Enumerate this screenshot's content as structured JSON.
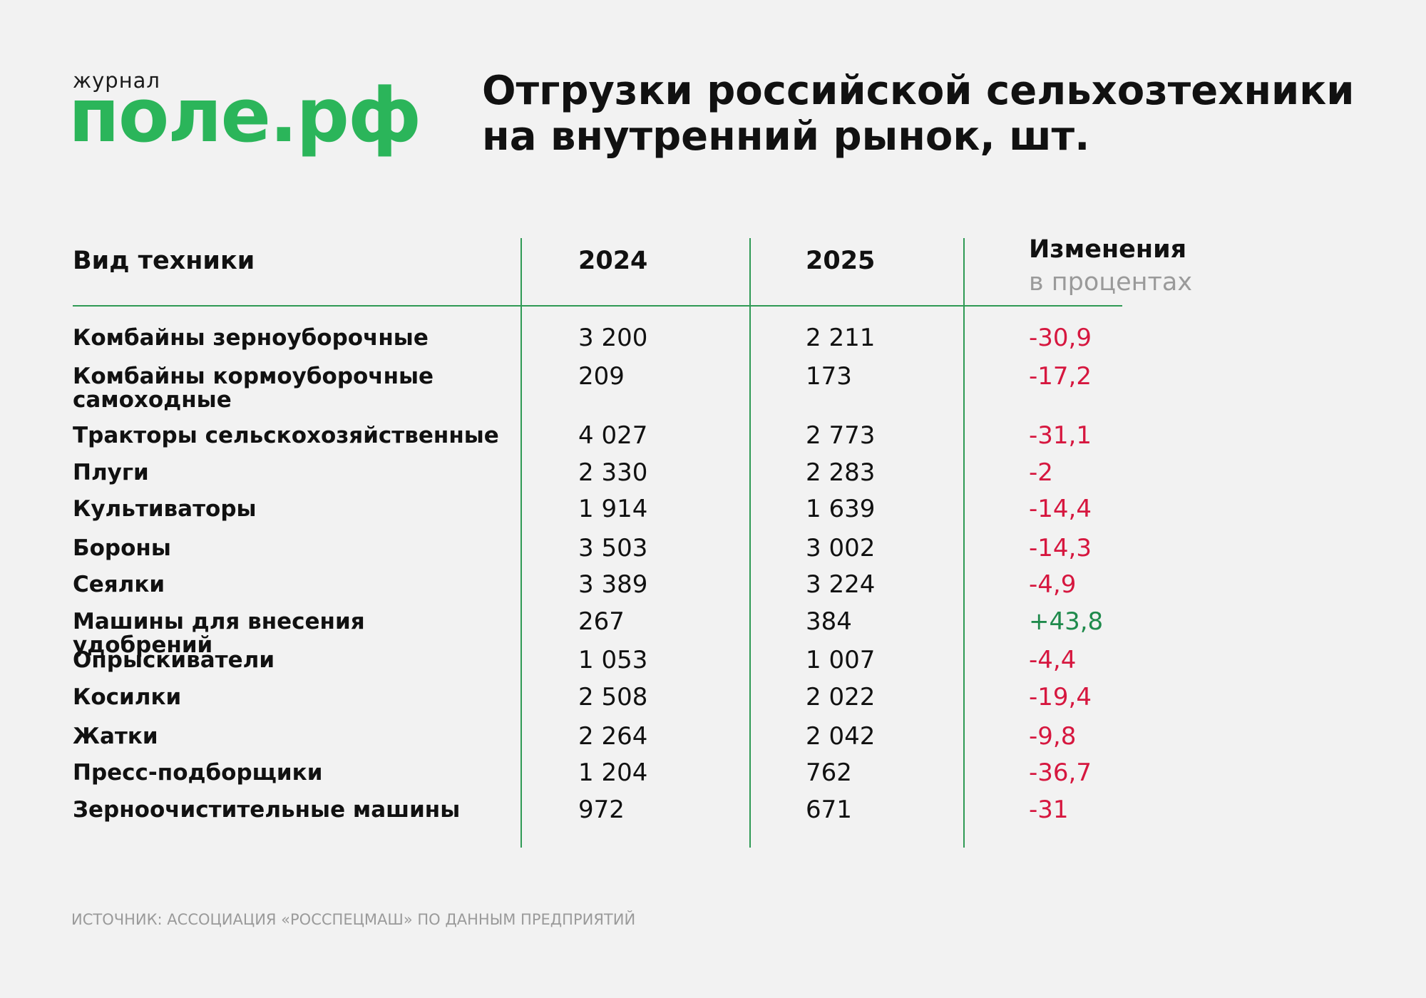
{
  "logo": {
    "small": "журнал",
    "big": "поле.рф"
  },
  "title": [
    "Отгрузки российской сельхозтехники",
    "на внутренний рынок, шт."
  ],
  "table": {
    "header": {
      "name": "Вид техники",
      "y2024": "2024",
      "y2025": "2025",
      "change": "Изменения",
      "change_sub": "в процентах"
    },
    "negative_color": "#d6173f",
    "positive_color": "#1f8a4c",
    "rows": [
      [
        "Комбайны зерноуборочные",
        "3 200",
        "2 211",
        "-30,9"
      ],
      [
        "Комбайны кормоуборочные самоходные",
        "209",
        "173",
        "-17,2"
      ],
      [
        "Тракторы сельскохозяйственные",
        "4 027",
        "2 773",
        "-31,1"
      ],
      [
        "Плуги",
        "2 330",
        "2 283",
        "-2"
      ],
      [
        "Культиваторы",
        "1 914",
        "1 639",
        "-14,4"
      ],
      [
        "Бороны",
        "3 503",
        "3 002",
        "-14,3"
      ],
      [
        "Сеялки",
        "3 389",
        "3 224",
        "-4,9"
      ],
      [
        "Машины для внесения удобрений",
        "267",
        "384",
        "+43,8"
      ],
      [
        "Опрыскиватели",
        "1 053",
        "1 007",
        "-4,4"
      ],
      [
        "Косилки",
        "2 508",
        "2 022",
        "-19,4"
      ],
      [
        "Жатки",
        "2 264",
        "2 042",
        "-9,8"
      ],
      [
        "Пресс-подборщики",
        "1 204",
        "762",
        "-36,7"
      ],
      [
        "Зерноочистительные машины",
        "972",
        "671",
        "-31"
      ]
    ]
  },
  "source": "ИСТОЧНИК: АССОЦИАЦИЯ «РОССПЕЦМАШ» ПО ДАННЫМ ПРЕДПРИЯТИЙ"
}
